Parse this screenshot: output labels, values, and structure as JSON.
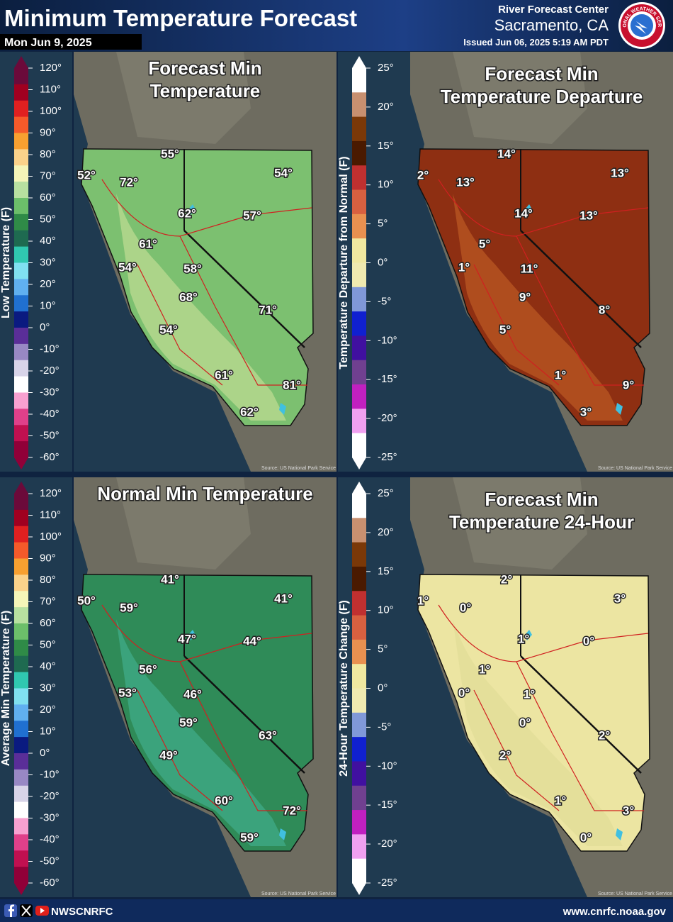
{
  "header": {
    "title": "Minimum Temperature Forecast",
    "date": "Mon Jun 9, 2025",
    "office": "River Forecast Center",
    "location": "Sacramento, CA",
    "issued": "Issued Jun 06, 2025 5:19 AM PDT",
    "logo_text": "NATIONAL WEATHER SERVICE"
  },
  "panels": [
    {
      "title_lines": [
        "Forecast Min",
        "Temperature"
      ],
      "scale_label": "Low Temperature (F)",
      "scale_ticks": [
        "120°",
        "110°",
        "100°",
        "90°",
        "80°",
        "70°",
        "60°",
        "50°",
        "40°",
        "30°",
        "20°",
        "10°",
        "0°",
        "-10°",
        "-20°",
        "-30°",
        "-40°",
        "-50°",
        "-60°"
      ],
      "labels": [
        "55°",
        "52°",
        "72°",
        "54°",
        "62°",
        "57°",
        "61°",
        "54°",
        "58°",
        "68°",
        "71°",
        "54°",
        "61°",
        "81°",
        "62°"
      ],
      "source": "Source: US National Park Service"
    },
    {
      "title_lines": [
        "Forecast Min",
        "Temperature Departure"
      ],
      "scale_label": "Temperature Departure from Normal (F)",
      "scale_ticks": [
        "25°",
        "20°",
        "15°",
        "10°",
        "5°",
        "0°",
        "-5°",
        "-10°",
        "-15°",
        "-20°",
        "-25°"
      ],
      "labels": [
        "14°",
        "2°",
        "13°",
        "13°",
        "14°",
        "13°",
        "5°",
        "1°",
        "11°",
        "9°",
        "8°",
        "5°",
        "1°",
        "9°",
        "3°"
      ],
      "source": "Source: US National Park Service"
    },
    {
      "title_lines": [
        "Normal Min Temperature"
      ],
      "scale_label": "Average Min Temperature (F)",
      "scale_ticks": [
        "120°",
        "110°",
        "100°",
        "90°",
        "80°",
        "70°",
        "60°",
        "50°",
        "40°",
        "30°",
        "20°",
        "10°",
        "0°",
        "-10°",
        "-20°",
        "-30°",
        "-40°",
        "-50°",
        "-60°"
      ],
      "labels": [
        "41°",
        "50°",
        "59°",
        "41°",
        "47°",
        "44°",
        "56°",
        "53°",
        "46°",
        "59°",
        "63°",
        "49°",
        "60°",
        "72°",
        "59°"
      ],
      "source": "Source: US National Park Service"
    },
    {
      "title_lines": [
        "Forecast Min",
        "Temperature 24-Hour"
      ],
      "scale_label": "24-Hour Temperature Change (F)",
      "scale_ticks": [
        "25°",
        "20°",
        "15°",
        "10°",
        "5°",
        "0°",
        "-5°",
        "-10°",
        "-15°",
        "-20°",
        "-25°"
      ],
      "labels": [
        "2°",
        "1°",
        "0°",
        "3°",
        "1°",
        "0°",
        "1°",
        "0°",
        "1°",
        "0°",
        "2°",
        "2°",
        "1°",
        "3°",
        "0°"
      ],
      "source": "Source: US National Park Service"
    }
  ],
  "footer": {
    "social": "NWSCNRFC",
    "url": "www.cnrfc.noaa.gov"
  }
}
